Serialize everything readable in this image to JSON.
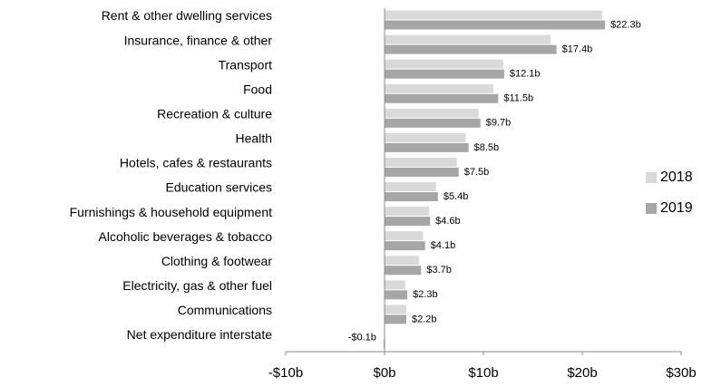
{
  "chart_data": {
    "type": "hbar",
    "categories": [
      "Rent & other dwelling services",
      "Insurance, finance & other",
      "Transport",
      "Food",
      "Recreation & culture",
      "Health",
      "Hotels, cafes & restaurants",
      "Education services",
      "Furnishings & household equipment",
      "Alcoholic beverages & tobacco",
      "Clothing & footwear",
      "Electricity, gas & other fuel",
      "Communications",
      "Net expenditure interstate"
    ],
    "series": [
      {
        "name": "2018",
        "color": "#d9d9d9",
        "values": [
          22.0,
          16.8,
          12.0,
          11.0,
          9.5,
          8.2,
          7.3,
          5.2,
          4.5,
          3.9,
          3.5,
          2.1,
          2.2,
          0
        ]
      },
      {
        "name": "2019",
        "color": "#a6a6a6",
        "values": [
          22.3,
          17.4,
          12.1,
          11.5,
          9.7,
          8.5,
          7.5,
          5.4,
          4.6,
          4.1,
          3.7,
          2.3,
          2.2,
          -0.1
        ],
        "value_labels": [
          "$22.3b",
          "$17.4b",
          "$12.1b",
          "$11.5b",
          "$9.7b",
          "$8.5b",
          "$7.5b",
          "$5.4b",
          "$4.6b",
          "$4.1b",
          "$3.7b",
          "$2.3b",
          "$2.2b",
          "-$0.1b"
        ]
      }
    ],
    "xlim": [
      -10,
      30
    ],
    "xticks": [
      {
        "value": -10,
        "label": "-$10b"
      },
      {
        "value": 0,
        "label": "$0b"
      },
      {
        "value": 10,
        "label": "$10b"
      },
      {
        "value": 20,
        "label": "$20b"
      },
      {
        "value": 30,
        "label": "$30b"
      }
    ],
    "legend": "right"
  }
}
